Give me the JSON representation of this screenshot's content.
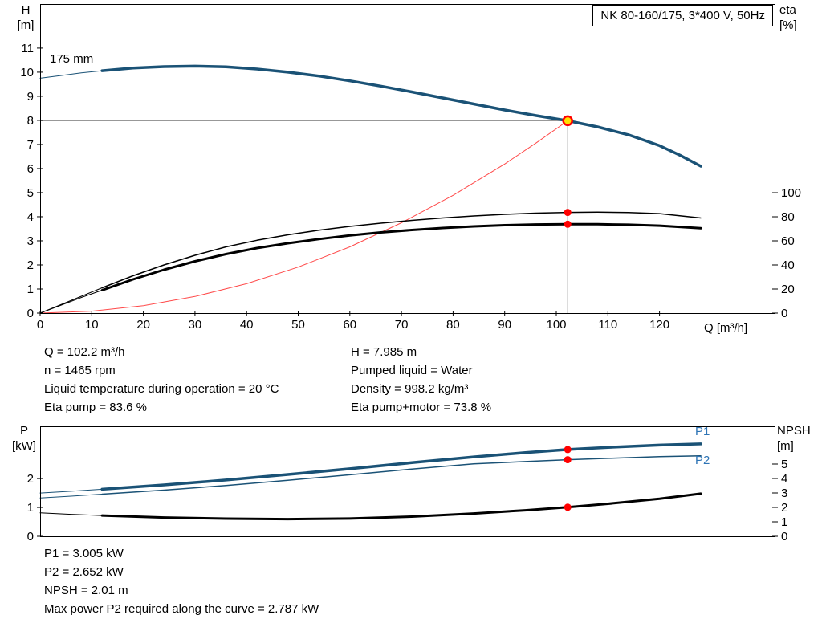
{
  "header": {
    "title_box": "NK 80-160/175, 3*400 V, 50Hz"
  },
  "labels": {
    "size": "175 mm",
    "p1": "P1",
    "p2": "P2",
    "axis_h_1": "H",
    "axis_h_2": "[m]",
    "axis_eta_1": "eta",
    "axis_eta_2": "[%]",
    "axis_q": "Q [m³/h]",
    "axis_p_1": "P",
    "axis_p_2": "[kW]",
    "axis_npsh_1": "NPSH",
    "axis_npsh_2": "[m]"
  },
  "info_block": {
    "left": [
      "Q = 102.2 m³/h",
      "n = 1465 rpm",
      "Liquid temperature during operation = 20 °C",
      "Eta pump = 83.6 %"
    ],
    "right": [
      "H = 7.985 m",
      "Pumped liquid = Water",
      "Density = 998.2 kg/m³",
      "Eta pump+motor = 73.8 %"
    ]
  },
  "result_block": [
    "P1 = 3.005 kW",
    "P2 = 2.652 kW",
    "NPSH = 2.01 m",
    "Max power P2 required along the curve = 2.787 kW"
  ],
  "colors": {
    "curve_blue": "#1a5276",
    "label_blue": "#2e74b5",
    "system_red": "#ff4a4a",
    "dot_red": "#ff0000",
    "dot_yellow": "#ffe000",
    "crosshair_gray": "#8a8a8a",
    "black": "#000000"
  },
  "chart_data": [
    {
      "type": "line",
      "name": "qh-eta-chart",
      "title": "NK 80-160/175, 3*400 V, 50Hz",
      "xlabel": "Q [m³/h]",
      "x_range": [
        0,
        142.3
      ],
      "x_ticks": [
        0,
        10,
        20,
        30,
        40,
        50,
        60,
        70,
        80,
        90,
        100,
        110,
        120
      ],
      "left_axis": {
        "label": "H [m]",
        "range": [
          0,
          12.83
        ],
        "ticks": [
          0,
          1,
          2,
          3,
          4,
          5,
          6,
          7,
          8,
          9,
          10,
          11
        ]
      },
      "right_axis": {
        "label": "eta [%]",
        "range": [
          0,
          256.7
        ],
        "ticks": [
          0,
          20,
          40,
          60,
          80,
          100
        ]
      },
      "duty_point": {
        "Q": 102.2,
        "H": 7.985,
        "eta_pump": 83.6,
        "eta_pump_motor": 73.8
      },
      "crosshair": [
        {
          "name": "duty-h-line",
          "axis": "left",
          "color": "#8a8a8a",
          "width": 1,
          "points": [
            [
              0,
              7.985
            ],
            [
              102.2,
              7.985
            ]
          ]
        },
        {
          "name": "duty-v-line",
          "axis": "left",
          "color": "#8a8a8a",
          "width": 1,
          "points": [
            [
              102.2,
              7.985
            ],
            [
              102.2,
              0
            ]
          ]
        }
      ],
      "series": [
        {
          "name": "system-curve",
          "axis": "left",
          "color": "#ff4a4a",
          "width": 1,
          "points": [
            [
              0,
              0
            ],
            [
              10,
              0.08
            ],
            [
              20,
              0.31
            ],
            [
              30,
              0.69
            ],
            [
              40,
              1.22
            ],
            [
              50,
              1.91
            ],
            [
              60,
              2.75
            ],
            [
              70,
              3.75
            ],
            [
              80,
              4.89
            ],
            [
              90,
              6.19
            ],
            [
              96,
              7.05
            ],
            [
              102.2,
              7.985
            ]
          ]
        },
        {
          "name": "head-curve-lead",
          "axis": "left",
          "color": "#1a5276",
          "width": 1,
          "points": [
            [
              0,
              9.75
            ],
            [
              4,
              9.86
            ],
            [
              8,
              9.97
            ],
            [
              12,
              10.06
            ]
          ]
        },
        {
          "name": "head-curve-175mm",
          "axis": "left",
          "color": "#1a5276",
          "width": 3.5,
          "points": [
            [
              12,
              10.06
            ],
            [
              18,
              10.17
            ],
            [
              24,
              10.23
            ],
            [
              30,
              10.25
            ],
            [
              36,
              10.22
            ],
            [
              42,
              10.13
            ],
            [
              48,
              10.0
            ],
            [
              54,
              9.84
            ],
            [
              60,
              9.64
            ],
            [
              66,
              9.42
            ],
            [
              72,
              9.18
            ],
            [
              78,
              8.93
            ],
            [
              84,
              8.68
            ],
            [
              90,
              8.43
            ],
            [
              96,
              8.2
            ],
            [
              102.2,
              7.985
            ],
            [
              108,
              7.73
            ],
            [
              114,
              7.4
            ],
            [
              120,
              6.95
            ],
            [
              124,
              6.55
            ],
            [
              128,
              6.1
            ]
          ]
        },
        {
          "name": "eta-pump-lead",
          "axis": "right",
          "color": "#000000",
          "width": 1,
          "points": [
            [
              0,
              0
            ],
            [
              4,
              7
            ],
            [
              8,
              14
            ],
            [
              12,
              21
            ]
          ]
        },
        {
          "name": "eta-pump-curve",
          "axis": "right",
          "color": "#000000",
          "width": 1.5,
          "points": [
            [
              12,
              21
            ],
            [
              18,
              31
            ],
            [
              24,
              40
            ],
            [
              30,
              48
            ],
            [
              36,
              55
            ],
            [
              42,
              60.5
            ],
            [
              48,
              65
            ],
            [
              54,
              68.8
            ],
            [
              60,
              72
            ],
            [
              66,
              74.7
            ],
            [
              72,
              77
            ],
            [
              78,
              79
            ],
            [
              84,
              80.7
            ],
            [
              90,
              82
            ],
            [
              96,
              83
            ],
            [
              102.2,
              83.6
            ],
            [
              108,
              83.8
            ],
            [
              114,
              83.5
            ],
            [
              120,
              82.6
            ],
            [
              128,
              79
            ]
          ]
        },
        {
          "name": "eta-pump-motor-lead",
          "axis": "right",
          "color": "#000000",
          "width": 1,
          "points": [
            [
              0,
              0
            ],
            [
              4,
              6.5
            ],
            [
              8,
              13
            ],
            [
              12,
              19
            ]
          ]
        },
        {
          "name": "eta-pump-motor-curve",
          "axis": "right",
          "color": "#000000",
          "width": 3,
          "points": [
            [
              12,
              19
            ],
            [
              18,
              28
            ],
            [
              24,
              36
            ],
            [
              30,
              43
            ],
            [
              36,
              49
            ],
            [
              42,
              54
            ],
            [
              48,
              58
            ],
            [
              54,
              61.5
            ],
            [
              60,
              64.5
            ],
            [
              66,
              67
            ],
            [
              72,
              69
            ],
            [
              78,
              70.7
            ],
            [
              84,
              72
            ],
            [
              90,
              73
            ],
            [
              96,
              73.6
            ],
            [
              102.2,
              73.8
            ],
            [
              108,
              73.8
            ],
            [
              114,
              73.4
            ],
            [
              120,
              72.6
            ],
            [
              128,
              70.5
            ]
          ]
        }
      ],
      "markers": [
        {
          "name": "eta-pump-point",
          "x": 102.2,
          "y": 83.6,
          "axis": "right",
          "r": 4.5,
          "fill": "#ff0000"
        },
        {
          "name": "eta-pump-motor-point",
          "x": 102.2,
          "y": 73.8,
          "axis": "right",
          "r": 4.5,
          "fill": "#ff0000"
        },
        {
          "name": "duty-point",
          "x": 102.2,
          "y": 7.985,
          "axis": "left",
          "r": 5.5,
          "fill": "#ffe000",
          "stroke": "#ff0000",
          "sw": 2.5
        }
      ]
    },
    {
      "type": "line",
      "name": "power-npsh-chart",
      "xlabel": "",
      "x_range": [
        0,
        142.3
      ],
      "x_ticks": [],
      "left_axis": {
        "label": "P [kW]",
        "range": [
          0,
          3.81
        ],
        "ticks": [
          0,
          1,
          2
        ]
      },
      "right_axis": {
        "label": "NPSH [m]",
        "range": [
          0,
          7.61
        ],
        "ticks": [
          0,
          1,
          2,
          3,
          4,
          5
        ]
      },
      "duty_point": {
        "Q": 102.2,
        "P1": 3.005,
        "P2": 2.652,
        "NPSH": 2.01
      },
      "crosshair": [],
      "series": [
        {
          "name": "p2-lead",
          "axis": "left",
          "color": "#1a5276",
          "width": 1,
          "points": [
            [
              0,
              1.33
            ],
            [
              6,
              1.39
            ],
            [
              12,
              1.46
            ]
          ]
        },
        {
          "name": "p2-curve",
          "axis": "left",
          "color": "#1a5276",
          "width": 1.5,
          "points": [
            [
              12,
              1.46
            ],
            [
              24,
              1.6
            ],
            [
              36,
              1.76
            ],
            [
              48,
              1.94
            ],
            [
              60,
              2.13
            ],
            [
              72,
              2.33
            ],
            [
              84,
              2.51
            ],
            [
              94,
              2.59
            ],
            [
              102.2,
              2.652
            ],
            [
              110,
              2.7
            ],
            [
              120,
              2.76
            ],
            [
              128,
              2.787
            ]
          ]
        },
        {
          "name": "p1-lead",
          "axis": "left",
          "color": "#1a5276",
          "width": 1,
          "points": [
            [
              0,
              1.5
            ],
            [
              6,
              1.56
            ],
            [
              12,
              1.63
            ]
          ]
        },
        {
          "name": "p1-curve",
          "axis": "left",
          "color": "#1a5276",
          "width": 3.5,
          "points": [
            [
              12,
              1.63
            ],
            [
              24,
              1.78
            ],
            [
              36,
              1.95
            ],
            [
              48,
              2.14
            ],
            [
              60,
              2.34
            ],
            [
              72,
              2.55
            ],
            [
              84,
              2.75
            ],
            [
              94,
              2.9
            ],
            [
              102.2,
              3.005
            ],
            [
              110,
              3.08
            ],
            [
              120,
              3.16
            ],
            [
              128,
              3.2
            ]
          ]
        },
        {
          "name": "npsh-lead",
          "axis": "right",
          "color": "#000000",
          "width": 1,
          "points": [
            [
              0,
              1.62
            ],
            [
              6,
              1.52
            ],
            [
              12,
              1.44
            ]
          ]
        },
        {
          "name": "npsh-curve",
          "axis": "right",
          "color": "#000000",
          "width": 3,
          "points": [
            [
              12,
              1.44
            ],
            [
              24,
              1.3
            ],
            [
              36,
              1.22
            ],
            [
              48,
              1.19
            ],
            [
              60,
              1.23
            ],
            [
              72,
              1.36
            ],
            [
              84,
              1.58
            ],
            [
              94,
              1.8
            ],
            [
              102.2,
              2.01
            ],
            [
              110,
              2.25
            ],
            [
              120,
              2.6
            ],
            [
              128,
              2.95
            ]
          ]
        }
      ],
      "markers": [
        {
          "name": "p1-point",
          "x": 102.2,
          "y": 3.005,
          "axis": "left",
          "r": 4.5,
          "fill": "#ff0000"
        },
        {
          "name": "p2-point",
          "x": 102.2,
          "y": 2.652,
          "axis": "left",
          "r": 4.5,
          "fill": "#ff0000"
        },
        {
          "name": "npsh-point",
          "x": 102.2,
          "y": 2.01,
          "axis": "right",
          "r": 4.5,
          "fill": "#ff0000"
        }
      ]
    }
  ]
}
